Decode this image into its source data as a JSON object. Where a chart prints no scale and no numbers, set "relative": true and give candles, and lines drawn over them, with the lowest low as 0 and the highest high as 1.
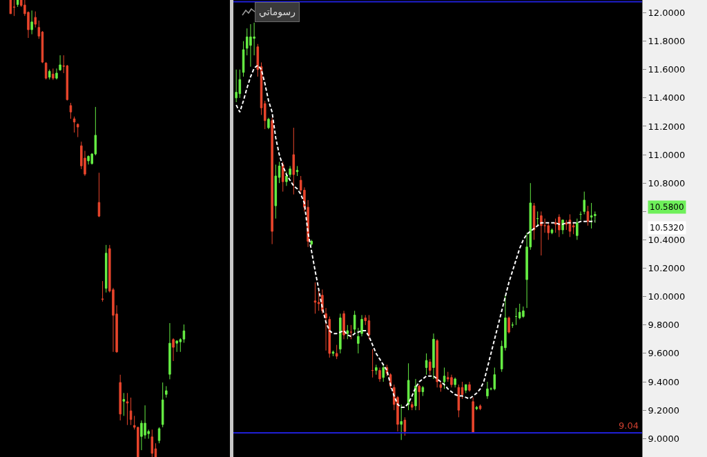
{
  "chart_data": [
    {
      "type": "candlestick",
      "relative": true,
      "tick_labels": false,
      "grid": false,
      "categories": [
        null,
        null,
        null,
        null,
        null,
        null,
        null,
        null,
        null,
        null,
        null,
        null,
        null,
        null,
        null,
        null,
        null,
        null,
        null,
        null,
        null,
        null,
        null,
        null,
        null,
        null,
        null,
        null,
        null,
        null,
        null,
        null,
        null,
        null,
        null,
        null,
        null,
        null,
        null,
        null,
        null,
        null,
        null,
        null,
        null,
        null,
        null,
        null,
        null,
        null
      ],
      "ohlc": [
        [
          1.0,
          1.0,
          0.97,
          0.97
        ],
        [
          0.985,
          1.0,
          0.965,
          0.984
        ],
        [
          0.99,
          1.0,
          0.985,
          1.0
        ],
        [
          1.0,
          1.0,
          0.985,
          0.988
        ],
        [
          0.989,
          1.0,
          0.965,
          0.97
        ],
        [
          0.973,
          0.975,
          0.917,
          0.935
        ],
        [
          0.935,
          0.977,
          0.925,
          0.952
        ],
        [
          0.962,
          0.975,
          0.94,
          0.947
        ],
        [
          0.94,
          0.955,
          0.915,
          0.921
        ],
        [
          0.93,
          0.932,
          0.862,
          0.864
        ],
        [
          0.862,
          0.864,
          0.826,
          0.829
        ],
        [
          0.831,
          0.848,
          0.826,
          0.844
        ],
        [
          0.838,
          0.85,
          0.825,
          0.829
        ],
        [
          0.829,
          0.85,
          0.826,
          0.84
        ],
        [
          0.847,
          0.879,
          0.845,
          0.858
        ],
        [
          0.856,
          0.879,
          0.84,
          0.855
        ],
        [
          0.856,
          0.858,
          0.78,
          0.782
        ],
        [
          0.769,
          0.775,
          0.74,
          0.755
        ],
        [
          0.74,
          0.745,
          0.71,
          0.733
        ],
        [
          0.728,
          0.73,
          0.7,
          0.722
        ],
        [
          0.681,
          0.69,
          0.63,
          0.637
        ],
        [
          0.654,
          0.67,
          0.615,
          0.619
        ],
        [
          0.648,
          0.66,
          0.64,
          0.658
        ],
        [
          0.642,
          0.665,
          0.64,
          0.663
        ],
        [
          0.663,
          0.766,
          0.66,
          0.704
        ],
        [
          0.557,
          0.622,
          0.525,
          0.527
        ],
        [
          0.346,
          0.385,
          0.34,
          0.345
        ],
        [
          0.369,
          0.464,
          0.36,
          0.446
        ],
        [
          0.456,
          0.464,
          0.36,
          0.363
        ],
        [
          0.366,
          0.37,
          0.23,
          0.31
        ],
        [
          0.313,
          0.332,
          0.228,
          0.23
        ],
        [
          0.163,
          0.18,
          0.08,
          0.094
        ],
        [
          0.122,
          0.14,
          0.09,
          0.126
        ],
        [
          0.121,
          0.14,
          0.07,
          0.118
        ],
        [
          0.101,
          0.13,
          0.07,
          0.082
        ],
        [
          0.069,
          0.09,
          0.06,
          0.065
        ],
        [
          0.065,
          0.066,
          0.0,
          0.0
        ],
        [
          0.045,
          0.08,
          0.015,
          0.074
        ],
        [
          0.048,
          0.113,
          0.04,
          0.074
        ],
        [
          0.051,
          0.06,
          0.04,
          0.056
        ],
        [
          0.044,
          0.06,
          0.0,
          0.008
        ],
        [
          0.018,
          0.03,
          0.0,
          0.0
        ],
        [
          0.036,
          0.065,
          0.03,
          0.062
        ],
        [
          0.071,
          0.163,
          0.065,
          0.125
        ],
        [
          0.137,
          0.155,
          0.13,
          0.145
        ],
        [
          0.181,
          0.293,
          0.17,
          0.249
        ],
        [
          0.257,
          0.26,
          0.21,
          0.24
        ],
        [
          0.249,
          0.255,
          0.23,
          0.254
        ],
        [
          0.252,
          0.26,
          0.23,
          0.257
        ],
        [
          0.258,
          0.29,
          0.25,
          0.276
        ]
      ]
    },
    {
      "type": "candlestick",
      "tick_labels": "y",
      "grid": false,
      "ylim": [
        8.87,
        12.09
      ],
      "yticks": [
        {
          "value": 9,
          "label": "9.0000"
        },
        {
          "value": 9.2,
          "label": "9.2000"
        },
        {
          "value": 9.4,
          "label": "9.4000"
        },
        {
          "value": 9.6,
          "label": "9.6000"
        },
        {
          "value": 9.8,
          "label": "9.8000"
        },
        {
          "value": 10,
          "label": "10.0000"
        },
        {
          "value": 10.2,
          "label": "10.2000"
        },
        {
          "value": 10.4,
          "label": "10.4000"
        },
        {
          "value": 10.6,
          "label": null
        },
        {
          "value": 10.8,
          "label": "10.8000"
        },
        {
          "value": 11,
          "label": "11.0000"
        },
        {
          "value": 11.2,
          "label": "11.2000"
        },
        {
          "value": 11.4,
          "label": "11.4000"
        },
        {
          "value": 11.6,
          "label": "11.6000"
        },
        {
          "value": 11.8,
          "label": "11.8000"
        },
        {
          "value": 12,
          "label": "12.0000"
        }
      ],
      "ref_lines": [
        {
          "axis": "y",
          "value": 12.078,
          "color": "#1f1fd6"
        },
        {
          "axis": "y",
          "value": 9.04,
          "label": "9.04",
          "color": "#1f1fd6"
        }
      ],
      "annotations": [
        "رسوماتي",
        "10.5800",
        "10.5320"
      ],
      "categories": [
        null,
        null,
        null,
        null,
        null,
        null,
        null,
        null,
        null,
        null,
        null,
        null,
        null,
        null,
        null,
        null,
        null,
        null,
        null,
        null,
        null,
        null,
        null,
        null,
        null,
        null,
        null,
        null,
        null,
        null,
        null,
        null,
        null,
        null,
        null,
        null,
        null,
        null,
        null,
        null,
        null,
        null,
        null,
        null,
        null,
        null,
        null,
        null,
        null,
        null,
        null,
        null,
        null,
        null,
        null,
        null,
        null,
        null,
        null,
        null,
        null,
        null,
        null,
        null,
        null,
        null,
        null,
        null,
        null,
        null,
        null,
        null,
        null,
        null,
        null,
        null,
        null,
        null,
        null,
        null,
        null,
        null,
        null,
        null,
        null,
        null,
        null,
        null,
        null,
        null,
        null,
        null,
        null,
        null,
        null,
        null,
        null,
        null,
        null,
        null,
        null
      ],
      "ohlc": [
        [
          11.4,
          11.6,
          11.37,
          11.44
        ],
        [
          11.43,
          11.6,
          11.4,
          11.53
        ],
        [
          11.58,
          11.8,
          11.55,
          11.74
        ],
        [
          11.75,
          11.89,
          11.7,
          11.83
        ],
        [
          11.77,
          11.92,
          11.62,
          11.83
        ],
        [
          11.82,
          11.93,
          11.7,
          11.83
        ],
        [
          11.76,
          11.78,
          11.55,
          11.6
        ],
        [
          11.62,
          11.65,
          11.28,
          11.33
        ],
        [
          11.36,
          11.38,
          11.18,
          11.24
        ],
        [
          11.19,
          11.26,
          11.18,
          11.25
        ],
        [
          11.24,
          11.26,
          10.37,
          10.46
        ],
        [
          10.64,
          10.93,
          10.55,
          10.85
        ],
        [
          10.84,
          10.95,
          10.8,
          10.92
        ],
        [
          10.93,
          10.95,
          10.74,
          10.81
        ],
        [
          10.81,
          10.88,
          10.78,
          10.85
        ],
        [
          10.86,
          10.92,
          10.84,
          10.9
        ],
        [
          11.0,
          11.19,
          10.72,
          10.86
        ],
        [
          10.88,
          10.92,
          10.85,
          10.89
        ],
        [
          10.82,
          10.85,
          10.72,
          10.75
        ],
        [
          10.75,
          10.77,
          10.6,
          10.63
        ],
        [
          10.63,
          10.68,
          10.35,
          10.39
        ],
        [
          10.37,
          10.4,
          10.36,
          10.39
        ],
        [
          9.97,
          10.1,
          9.88,
          9.96
        ],
        [
          9.96,
          10.04,
          9.9,
          9.95
        ],
        [
          10.01,
          10.05,
          9.88,
          9.9
        ],
        [
          9.88,
          9.92,
          9.62,
          9.85
        ],
        [
          9.84,
          9.86,
          9.57,
          9.6
        ],
        [
          9.6,
          9.62,
          9.58,
          9.61
        ],
        [
          9.6,
          9.66,
          9.56,
          9.58
        ],
        [
          9.63,
          9.88,
          9.6,
          9.85
        ],
        [
          9.88,
          9.9,
          9.7,
          9.73
        ],
        [
          9.74,
          9.8,
          9.7,
          9.76
        ],
        [
          9.75,
          9.8,
          9.7,
          9.75
        ],
        [
          9.77,
          9.9,
          9.74,
          9.87
        ],
        [
          9.67,
          9.78,
          9.6,
          9.72
        ],
        [
          9.74,
          9.87,
          9.72,
          9.84
        ],
        [
          9.85,
          9.87,
          9.8,
          9.83
        ],
        [
          9.83,
          9.87,
          9.7,
          9.73
        ],
        [
          9.48,
          9.63,
          9.43,
          9.48
        ],
        [
          9.48,
          9.52,
          9.45,
          9.5
        ],
        [
          9.48,
          9.5,
          9.4,
          9.42
        ],
        [
          9.43,
          9.52,
          9.4,
          9.5
        ],
        [
          9.5,
          9.52,
          9.44,
          9.46
        ],
        [
          9.45,
          9.46,
          9.35,
          9.37
        ],
        [
          9.36,
          9.38,
          9.2,
          9.24
        ],
        [
          9.29,
          9.3,
          9.05,
          9.1
        ],
        [
          9.1,
          9.24,
          8.99,
          9.12
        ],
        [
          9.13,
          9.15,
          9.02,
          9.05
        ],
        [
          9.24,
          9.53,
          9.2,
          9.41
        ],
        [
          9.24,
          9.26,
          9.2,
          9.22
        ],
        [
          9.23,
          9.42,
          9.2,
          9.37
        ],
        [
          9.37,
          9.38,
          9.2,
          9.33
        ],
        [
          9.33,
          9.37,
          9.3,
          9.36
        ],
        [
          9.5,
          9.6,
          9.45,
          9.55
        ],
        [
          9.54,
          9.56,
          9.45,
          9.48
        ],
        [
          9.5,
          9.74,
          9.42,
          9.7
        ],
        [
          9.69,
          9.7,
          9.36,
          9.4
        ],
        [
          9.38,
          9.4,
          9.33,
          9.36
        ],
        [
          9.4,
          9.5,
          9.35,
          9.44
        ],
        [
          9.43,
          9.47,
          9.4,
          9.42
        ],
        [
          9.43,
          9.45,
          9.36,
          9.38
        ],
        [
          9.38,
          9.43,
          9.36,
          9.42
        ],
        [
          9.36,
          9.38,
          9.15,
          9.2
        ],
        [
          9.36,
          9.4,
          9.28,
          9.31
        ],
        [
          9.34,
          9.38,
          9.32,
          9.38
        ],
        [
          9.38,
          9.4,
          9.33,
          9.34
        ],
        [
          9.26,
          9.29,
          9.04,
          9.04
        ],
        [
          9.21,
          9.23,
          9.2,
          9.22
        ],
        [
          9.23,
          9.24,
          9.2,
          9.21
        ],
        null,
        [
          9.3,
          9.4,
          9.28,
          9.35
        ],
        [
          9.35,
          9.36,
          9.34,
          9.35
        ],
        [
          9.35,
          9.5,
          9.34,
          9.45
        ],
        null,
        [
          9.49,
          9.69,
          9.47,
          9.65
        ],
        [
          9.64,
          10.01,
          9.62,
          9.85
        ],
        [
          9.85,
          9.86,
          9.74,
          9.75
        ],
        [
          9.8,
          9.82,
          9.78,
          9.8
        ],
        [
          9.86,
          9.92,
          9.8,
          9.86
        ],
        [
          9.85,
          9.95,
          9.84,
          9.89
        ],
        [
          9.86,
          9.93,
          9.85,
          9.9
        ],
        [
          10.12,
          10.45,
          9.92,
          10.35
        ],
        [
          10.35,
          10.8,
          10.33,
          10.66
        ],
        [
          10.64,
          10.66,
          10.4,
          10.47
        ],
        [
          10.55,
          10.6,
          10.5,
          10.55
        ],
        [
          10.57,
          10.6,
          10.29,
          10.5
        ],
        [
          10.5,
          10.55,
          10.45,
          10.5
        ],
        [
          10.5,
          10.52,
          10.4,
          10.45
        ],
        [
          10.45,
          10.48,
          10.44,
          10.47
        ],
        [
          10.52,
          10.55,
          10.45,
          10.51
        ],
        [
          10.56,
          10.58,
          10.42,
          10.47
        ],
        [
          10.47,
          10.54,
          10.44,
          10.54
        ],
        [
          10.52,
          10.54,
          10.47,
          10.51
        ],
        [
          10.54,
          10.58,
          10.42,
          10.46
        ],
        [
          10.5,
          10.52,
          10.44,
          10.49
        ],
        [
          10.43,
          10.55,
          10.4,
          10.52
        ],
        [
          10.58,
          10.6,
          10.54,
          10.58
        ],
        [
          10.6,
          10.74,
          10.58,
          10.68
        ],
        [
          10.6,
          10.64,
          10.5,
          10.53
        ],
        [
          10.56,
          10.66,
          10.48,
          10.57
        ],
        [
          10.57,
          10.6,
          10.52,
          10.58
        ]
      ],
      "series": [
        {
          "type": "line",
          "color": "#ffffff",
          "line_style": "dashed",
          "values": [
            11.35,
            11.3,
            11.38,
            11.47,
            11.55,
            11.61,
            11.63,
            11.6,
            11.5,
            11.38,
            11.3,
            11.12,
            11.0,
            10.92,
            10.86,
            10.82,
            10.78,
            10.76,
            10.72,
            10.66,
            10.45,
            10.32,
            10.18,
            10.05,
            9.92,
            9.82,
            9.76,
            9.74,
            9.74,
            9.75,
            9.76,
            9.73,
            9.72,
            9.74,
            9.75,
            9.76,
            9.76,
            9.72,
            9.66,
            9.6,
            9.56,
            9.52,
            9.48,
            9.38,
            9.3,
            9.24,
            9.22,
            9.22,
            9.25,
            9.3,
            9.36,
            9.4,
            9.42,
            9.44,
            9.44,
            9.44,
            9.42,
            9.4,
            9.38,
            9.35,
            9.33,
            9.31,
            9.3,
            9.3,
            9.29,
            9.28,
            9.3,
            9.32,
            9.35,
            9.4,
            9.5,
            9.6,
            9.7,
            9.8,
            9.9,
            10.0,
            10.1,
            10.18,
            10.26,
            10.34,
            10.4,
            10.44,
            10.46,
            10.48,
            10.5,
            10.52,
            10.52,
            10.52,
            10.52,
            10.52,
            10.51,
            10.51,
            10.52,
            10.52,
            10.52,
            10.52,
            10.53,
            10.53,
            10.53,
            10.53,
            10.532
          ]
        }
      ]
    }
  ]
}
